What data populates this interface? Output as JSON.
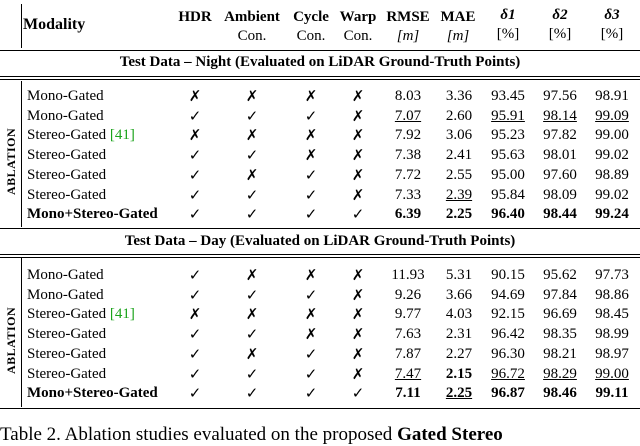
{
  "header": {
    "modality": "Modality",
    "cols": [
      {
        "top": "HDR",
        "sub": ""
      },
      {
        "top": "Ambient",
        "sub": "Con."
      },
      {
        "top": "Cycle",
        "sub": "Con."
      },
      {
        "top": "Warp",
        "sub": "Con."
      },
      {
        "top": "RMSE",
        "sub": "[m]"
      },
      {
        "top": "MAE",
        "sub": "[m]"
      },
      {
        "top": "δ1",
        "sub": "[%]"
      },
      {
        "top": "δ2",
        "sub": "[%]"
      },
      {
        "top": "δ3",
        "sub": "[%]"
      }
    ]
  },
  "side_label": "ABLATION",
  "sections": [
    {
      "title": "Test Data – Night (Evaluated on LiDAR Ground-Truth Points)",
      "rows": [
        {
          "mod": "Mono-Gated",
          "cite": "",
          "hdr": "✗",
          "amb": "✗",
          "cyc": "✗",
          "warp": "✗",
          "rmse": "8.03",
          "mae": "3.36",
          "d1": "93.45",
          "d2": "97.56",
          "d3": "98.91",
          "bold": false,
          "u": []
        },
        {
          "mod": "Mono-Gated",
          "cite": "",
          "hdr": "✓",
          "amb": "✓",
          "cyc": "✓",
          "warp": "✗",
          "rmse": "7.07",
          "mae": "2.60",
          "d1": "95.91",
          "d2": "98.14",
          "d3": "99.09",
          "bold": false,
          "u": [
            "rmse",
            "d1",
            "d2",
            "d3"
          ]
        },
        {
          "mod": "Stereo-Gated ",
          "cite": "[41]",
          "hdr": "✗",
          "amb": "✗",
          "cyc": "✗",
          "warp": "✗",
          "rmse": "7.92",
          "mae": "3.06",
          "d1": "95.23",
          "d2": "97.82",
          "d3": "99.00",
          "bold": false,
          "u": []
        },
        {
          "mod": "Stereo-Gated",
          "cite": "",
          "hdr": "✓",
          "amb": "✓",
          "cyc": "✗",
          "warp": "✗",
          "rmse": "7.38",
          "mae": "2.41",
          "d1": "95.63",
          "d2": "98.01",
          "d3": "99.02",
          "bold": false,
          "u": []
        },
        {
          "mod": "Stereo-Gated",
          "cite": "",
          "hdr": "✓",
          "amb": "✗",
          "cyc": "✓",
          "warp": "✗",
          "rmse": "7.72",
          "mae": "2.55",
          "d1": "95.00",
          "d2": "97.60",
          "d3": "98.89",
          "bold": false,
          "u": []
        },
        {
          "mod": "Stereo-Gated",
          "cite": "",
          "hdr": "✓",
          "amb": "✓",
          "cyc": "✓",
          "warp": "✗",
          "rmse": "7.33",
          "mae": "2.39",
          "d1": "95.84",
          "d2": "98.09",
          "d3": "99.02",
          "bold": false,
          "u": [
            "mae"
          ]
        },
        {
          "mod": "Mono+Stereo-Gated",
          "cite": "",
          "hdr": "✓",
          "amb": "✓",
          "cyc": "✓",
          "warp": "✓",
          "rmse": "6.39",
          "mae": "2.25",
          "d1": "96.40",
          "d2": "98.44",
          "d3": "99.24",
          "bold": true,
          "u": []
        }
      ]
    },
    {
      "title": "Test Data – Day (Evaluated on LiDAR Ground-Truth Points)",
      "rows": [
        {
          "mod": "Mono-Gated",
          "cite": "",
          "hdr": "✓",
          "amb": "✗",
          "cyc": "✗",
          "warp": "✗",
          "rmse": "11.93",
          "mae": "5.31",
          "d1": "90.15",
          "d2": "95.62",
          "d3": "97.73",
          "bold": false,
          "u": []
        },
        {
          "mod": "Mono-Gated",
          "cite": "",
          "hdr": "✓",
          "amb": "✓",
          "cyc": "✓",
          "warp": "✗",
          "rmse": "9.26",
          "mae": "3.66",
          "d1": "94.69",
          "d2": "97.84",
          "d3": "98.86",
          "bold": false,
          "u": []
        },
        {
          "mod": "Stereo-Gated ",
          "cite": "[41]",
          "hdr": "✗",
          "amb": "✗",
          "cyc": "✗",
          "warp": "✗",
          "rmse": "9.77",
          "mae": "4.03",
          "d1": "92.15",
          "d2": "96.69",
          "d3": "98.45",
          "bold": false,
          "u": []
        },
        {
          "mod": "Stereo-Gated",
          "cite": "",
          "hdr": "✓",
          "amb": "✓",
          "cyc": "✗",
          "warp": "✗",
          "rmse": "7.63",
          "mae": "2.31",
          "d1": "96.42",
          "d2": "98.35",
          "d3": "98.99",
          "bold": false,
          "u": []
        },
        {
          "mod": "Stereo-Gated",
          "cite": "",
          "hdr": "✓",
          "amb": "✗",
          "cyc": "✓",
          "warp": "✗",
          "rmse": "7.87",
          "mae": "2.27",
          "d1": "96.30",
          "d2": "98.21",
          "d3": "98.97",
          "bold": false,
          "u": []
        },
        {
          "mod": "Stereo-Gated",
          "cite": "",
          "hdr": "✓",
          "amb": "✓",
          "cyc": "✓",
          "warp": "✗",
          "rmse": "7.47",
          "mae": "2.15",
          "d1": "96.72",
          "d2": "98.29",
          "d3": "99.00",
          "bold": false,
          "u": [
            "rmse",
            "d1",
            "d2",
            "d3"
          ],
          "boldcells": [
            "mae"
          ]
        },
        {
          "mod": "Mono+Stereo-Gated",
          "cite": "",
          "hdr": "✓",
          "amb": "✓",
          "cyc": "✓",
          "warp": "✓",
          "rmse": "7.11",
          "mae": "2.25",
          "d1": "96.87",
          "d2": "98.46",
          "d3": "99.11",
          "bold": true,
          "u": [
            "mae"
          ]
        }
      ]
    }
  ],
  "caption": {
    "prefix": "Table 2. Ablation studies evaluated on the proposed ",
    "bold": "Gated Stereo"
  }
}
